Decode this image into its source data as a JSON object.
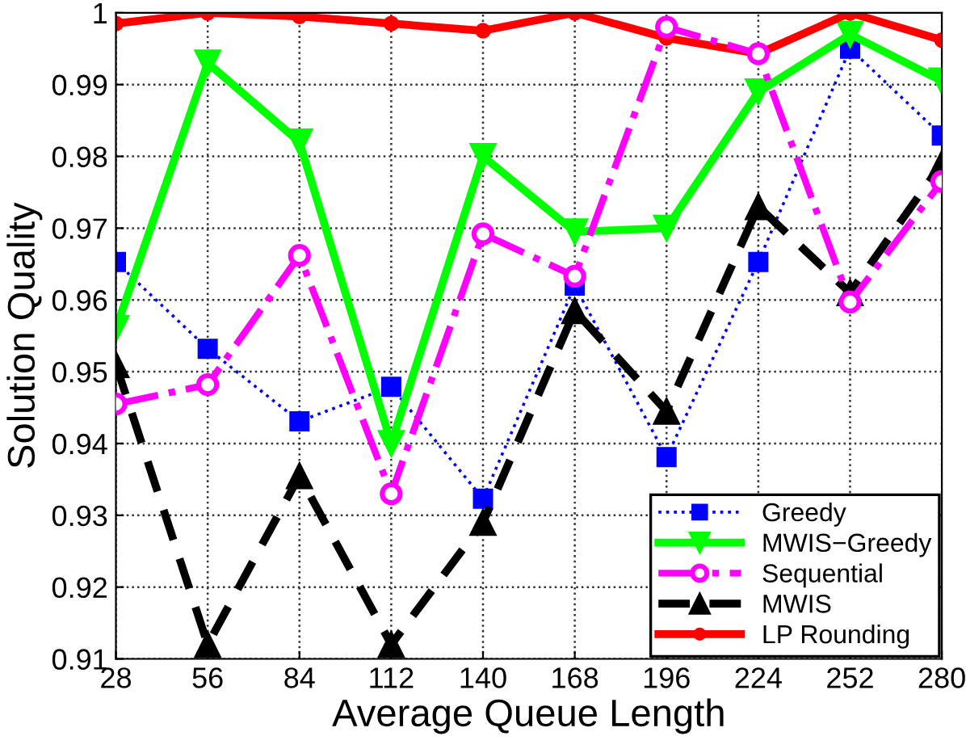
{
  "chart_data": {
    "type": "line",
    "xlabel": "Average Queue Length",
    "ylabel": "Solution Quality",
    "x": [
      28,
      56,
      84,
      112,
      140,
      168,
      196,
      224,
      252,
      280
    ],
    "xlim": [
      28,
      280
    ],
    "xticks": [
      28,
      56,
      84,
      112,
      140,
      168,
      196,
      224,
      252,
      280
    ],
    "ylim": [
      0.91,
      1
    ],
    "yticks": [
      0.91,
      0.92,
      0.93,
      0.94,
      0.95,
      0.96,
      0.97,
      0.98,
      0.99,
      1
    ],
    "grid": true,
    "legend": "bottom right",
    "series": [
      {
        "name": "Greedy",
        "color": "#0000ff",
        "marker": "square",
        "line_style": "dotted",
        "values": [
          0.9653,
          0.9532,
          0.9431,
          0.9479,
          0.9323,
          0.962,
          0.9381,
          0.9653,
          0.995,
          0.9829
        ]
      },
      {
        "name": "MWIS−Greedy",
        "color": "#00ff00",
        "marker": "triangle_down",
        "line_style": "solid",
        "values": [
          0.956,
          0.993,
          0.982,
          0.94,
          0.98,
          0.9695,
          0.97,
          0.989,
          0.997,
          0.9905
        ]
      },
      {
        "name": "Sequential",
        "color": "#ff00ff",
        "marker": "circle",
        "line_style": "dashdot",
        "values": [
          0.9455,
          0.9482,
          0.9662,
          0.933,
          0.9692,
          0.9633,
          0.998,
          0.9943,
          0.9597,
          0.9765
        ]
      },
      {
        "name": "MWIS",
        "color": "#000000",
        "marker": "triangle",
        "line_style": "dashed",
        "values": [
          0.951,
          0.912,
          0.9355,
          0.912,
          0.929,
          0.9585,
          0.9445,
          0.973,
          0.961,
          0.979
        ]
      },
      {
        "name": "LP Rounding",
        "color": "#ff0000",
        "marker": "circle",
        "line_style": "solid",
        "values": [
          0.9985,
          1.0,
          0.9995,
          0.9985,
          0.9975,
          1.0,
          0.9965,
          0.9943,
          1.0,
          0.9962
        ]
      }
    ]
  }
}
